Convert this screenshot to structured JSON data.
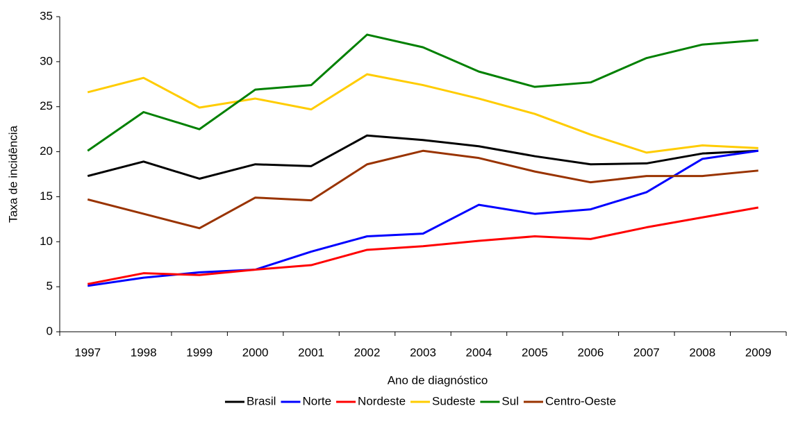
{
  "chart_data": {
    "type": "line",
    "x_label": "Ano de diagnóstico",
    "y_label": "Taxa de incidência",
    "categories": [
      "1997",
      "1998",
      "1999",
      "2000",
      "2001",
      "2002",
      "2003",
      "2004",
      "2005",
      "2006",
      "2007",
      "2008",
      "2009"
    ],
    "series": [
      {
        "name": "Brasil",
        "color": "#000000",
        "values": [
          17.3,
          18.9,
          17.0,
          18.6,
          18.4,
          21.8,
          21.3,
          20.6,
          19.5,
          18.6,
          18.7,
          19.8,
          20.1
        ]
      },
      {
        "name": "Norte",
        "color": "#0000ff",
        "values": [
          5.1,
          6.0,
          6.6,
          6.9,
          8.9,
          10.6,
          10.9,
          14.1,
          13.1,
          13.6,
          15.5,
          19.2,
          20.1
        ]
      },
      {
        "name": "Nordeste",
        "color": "#ff0000",
        "values": [
          5.3,
          6.5,
          6.3,
          6.9,
          7.4,
          9.1,
          9.5,
          10.1,
          10.6,
          10.3,
          11.6,
          12.7,
          13.8
        ]
      },
      {
        "name": "Sudeste",
        "color": "#ffcc00",
        "values": [
          26.6,
          28.2,
          24.9,
          25.9,
          24.7,
          28.6,
          27.4,
          25.9,
          24.2,
          21.9,
          19.9,
          20.7,
          20.4
        ]
      },
      {
        "name": "Sul",
        "color": "#008000",
        "values": [
          20.1,
          24.4,
          22.5,
          26.9,
          27.4,
          33.0,
          31.6,
          28.9,
          27.2,
          27.7,
          30.4,
          31.9,
          32.4
        ]
      },
      {
        "name": "Centro-Oeste",
        "color": "#993300",
        "values": [
          14.7,
          13.1,
          11.5,
          14.9,
          14.6,
          18.6,
          20.1,
          19.3,
          17.8,
          16.6,
          17.3,
          17.3,
          17.9
        ]
      }
    ],
    "ylim": [
      0,
      35
    ],
    "yticks": [
      0,
      5,
      10,
      15,
      20,
      25,
      30,
      35
    ],
    "grid": false,
    "legend": "bottom"
  }
}
